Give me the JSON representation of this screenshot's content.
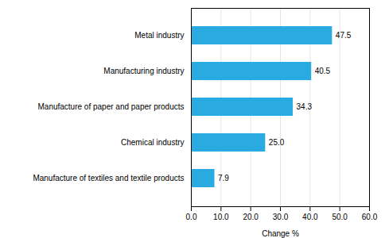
{
  "chart_data": {
    "type": "bar",
    "orientation": "horizontal",
    "categories": [
      "Manufacture of textiles and textile products",
      "Chemical industry",
      "Manufacture of paper and paper products",
      "Manufacturing industry",
      "Metal industry"
    ],
    "values": [
      7.9,
      25.0,
      34.3,
      40.5,
      47.5
    ],
    "value_labels": [
      "7.9",
      "25.0",
      "34.3",
      "40.5",
      "47.5"
    ],
    "data_labels": true,
    "color": "#29abe2",
    "xlabel": "Change %",
    "xlim": [
      0,
      60
    ],
    "xticks": [
      {
        "value": 0,
        "label": "0.0"
      },
      {
        "value": 10,
        "label": "10.0"
      },
      {
        "value": 20,
        "label": "20.0"
      },
      {
        "value": 30,
        "label": "30.0"
      },
      {
        "value": 40,
        "label": "40.0"
      },
      {
        "value": 50,
        "label": "50.0"
      },
      {
        "value": 60,
        "label": "60.0"
      }
    ],
    "grid": true
  }
}
